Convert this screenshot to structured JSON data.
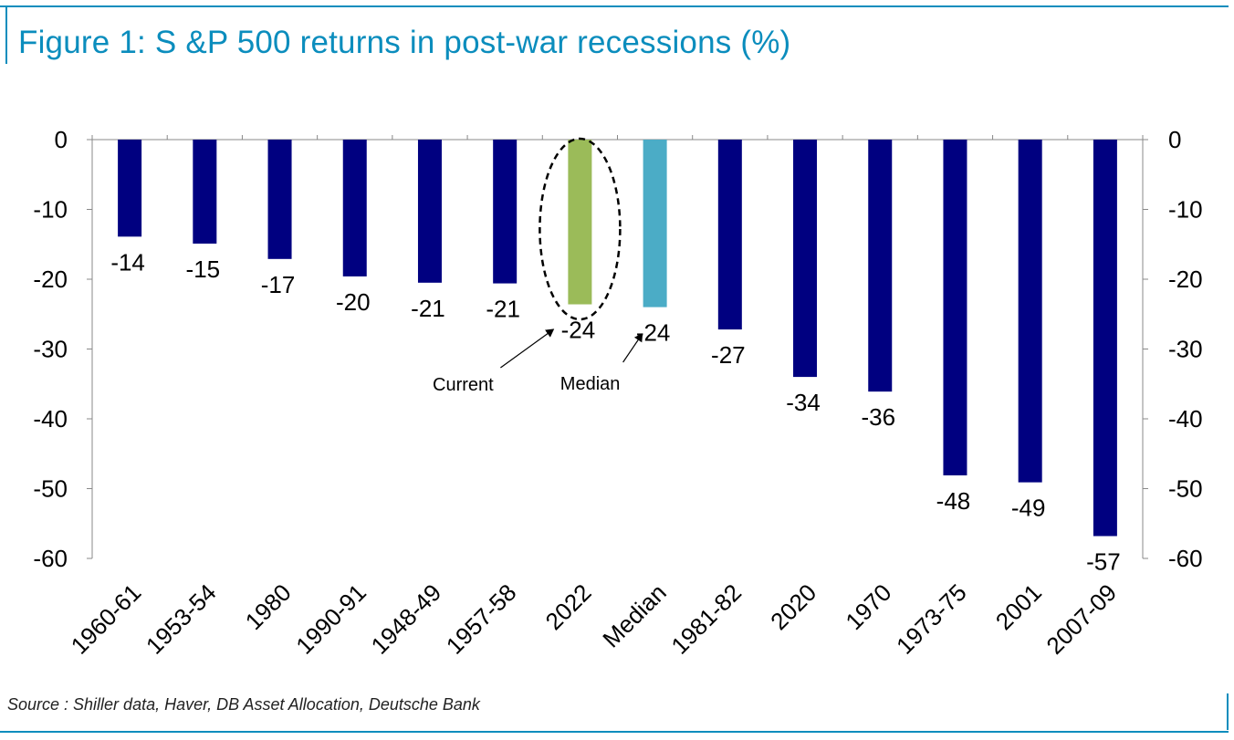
{
  "title": "Figure 1: S &P 500 returns in post-war recessions (%)",
  "source": "Source : Shiller data, Haver, DB Asset Allocation, Deutsche Bank",
  "colors": {
    "bar_default": "#000080",
    "bar_current": "#9bbb59",
    "bar_median": "#4bacc6",
    "accent": "#0b8dbd"
  },
  "chart_data": {
    "type": "bar",
    "title": "Figure 1: S &P 500 returns in post-war recessions (%)",
    "categories": [
      "1960-61",
      "1953-54",
      "1980",
      "1990-91",
      "1948-49",
      "1957-58",
      "2022",
      "Median",
      "1981-82",
      "2020",
      "1970",
      "1973-75",
      "2001",
      "2007-09"
    ],
    "values": [
      -14,
      -15,
      -17,
      -20,
      -21,
      -21,
      -24,
      -24,
      -27,
      -34,
      -36,
      -48,
      -49,
      -57
    ],
    "exact_values": [
      -13.9,
      -14.9,
      -17.1,
      -19.6,
      -20.5,
      -20.6,
      -23.6,
      -24.0,
      -27.2,
      -34.0,
      -36.1,
      -48.1,
      -49.1,
      -56.8
    ],
    "ylim": [
      -60,
      0
    ],
    "yticks": [
      0,
      -10,
      -20,
      -30,
      -40,
      -50,
      -60
    ],
    "secondary_y_axis": true,
    "xlabel": "",
    "ylabel": "",
    "highlight": {
      "2022": "current",
      "Median": "median"
    },
    "annotations": [
      {
        "text": "Current",
        "target": "2022",
        "style": "dashed-ellipse-arrow"
      },
      {
        "text": "Median",
        "target": "Median",
        "style": "arrow"
      }
    ]
  }
}
